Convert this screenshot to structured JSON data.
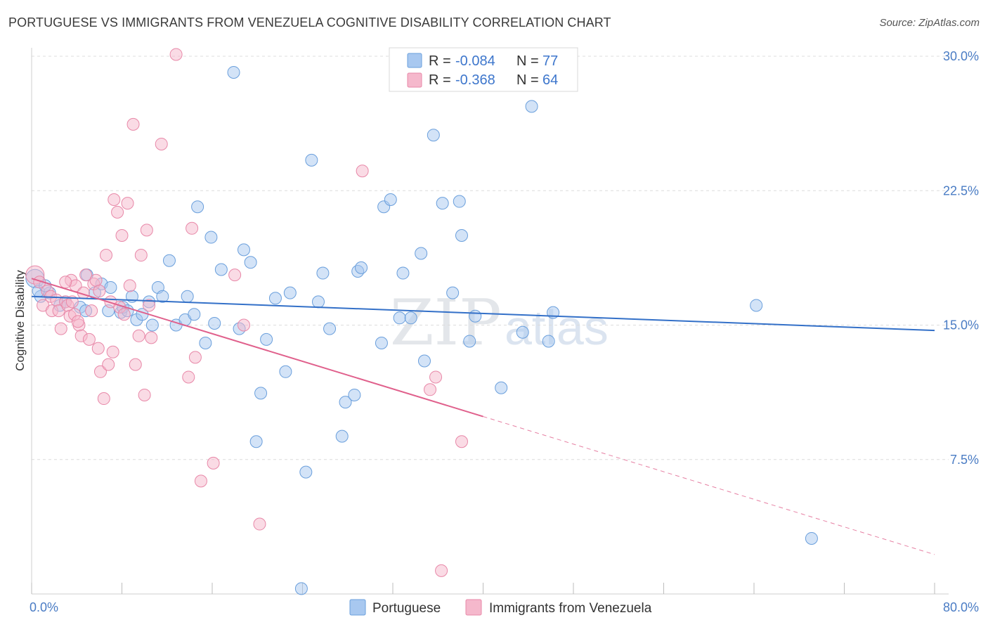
{
  "header": {
    "title": "PORTUGUESE VS IMMIGRANTS FROM VENEZUELA COGNITIVE DISABILITY CORRELATION CHART",
    "source": "Source: ZipAtlas.com"
  },
  "watermark": {
    "zip": "ZIP",
    "atlas": "atlas"
  },
  "legend": {
    "rows": [
      {
        "r_label": "R =",
        "r_value": "-0.084",
        "n_label": "N =",
        "n_value": "77",
        "color": "#a8c8f0"
      },
      {
        "r_label": "R =",
        "r_value": "-0.368",
        "n_label": "N =",
        "n_value": "64",
        "color": "#f5b8cc"
      }
    ]
  },
  "bottom_legend": {
    "items": [
      {
        "label": "Portuguese",
        "color": "#a8c8f0"
      },
      {
        "label": "Immigrants from Venezuela",
        "color": "#f5b8cc"
      }
    ]
  },
  "chart_data": {
    "type": "scatter",
    "title": "PORTUGUESE VS IMMIGRANTS FROM VENEZUELA COGNITIVE DISABILITY CORRELATION CHART",
    "xlabel": "",
    "ylabel": "Cognitive Disability",
    "xlim": [
      0,
      80
    ],
    "ylim": [
      0,
      30
    ],
    "x_tick_labels": [
      "0.0%",
      "80.0%"
    ],
    "y_ticks": [
      7.5,
      15.0,
      22.5,
      30.0
    ],
    "y_tick_labels": [
      "7.5%",
      "15.0%",
      "22.5%",
      "30.0%"
    ],
    "grid": true,
    "legend_position": "top-center",
    "series": [
      {
        "name": "Portuguese",
        "color": "#a8c8f0",
        "stroke": "#6a9fdc",
        "trend": {
          "x": [
            0,
            80
          ],
          "y": [
            16.6,
            14.7
          ],
          "line_color": "#3370c8"
        },
        "points": [
          [
            0.3,
            17.6
          ],
          [
            0.8,
            16.6
          ],
          [
            1.6,
            16.8
          ],
          [
            2.5,
            16.1
          ],
          [
            3.0,
            16.3
          ],
          [
            4.3,
            16.0
          ],
          [
            4.8,
            15.8
          ],
          [
            4.9,
            17.8
          ],
          [
            5.6,
            16.8
          ],
          [
            6.2,
            17.3
          ],
          [
            6.8,
            15.8
          ],
          [
            7.0,
            17.1
          ],
          [
            7.9,
            15.7
          ],
          [
            8.1,
            16.0
          ],
          [
            8.5,
            15.8
          ],
          [
            8.9,
            16.6
          ],
          [
            9.3,
            15.3
          ],
          [
            9.8,
            15.6
          ],
          [
            10.4,
            16.3
          ],
          [
            10.7,
            15.0
          ],
          [
            11.2,
            17.1
          ],
          [
            11.6,
            16.6
          ],
          [
            12.2,
            18.6
          ],
          [
            12.8,
            15.0
          ],
          [
            13.6,
            15.3
          ],
          [
            13.8,
            16.6
          ],
          [
            14.4,
            15.6
          ],
          [
            14.7,
            21.6
          ],
          [
            15.4,
            14.0
          ],
          [
            15.9,
            19.9
          ],
          [
            16.2,
            15.1
          ],
          [
            16.8,
            18.1
          ],
          [
            17.9,
            29.1
          ],
          [
            18.4,
            14.8
          ],
          [
            18.8,
            19.2
          ],
          [
            19.4,
            18.5
          ],
          [
            19.9,
            8.5
          ],
          [
            20.3,
            11.2
          ],
          [
            20.8,
            14.2
          ],
          [
            21.6,
            16.5
          ],
          [
            22.5,
            12.4
          ],
          [
            22.9,
            16.8
          ],
          [
            23.9,
            0.3
          ],
          [
            24.3,
            6.8
          ],
          [
            24.8,
            24.2
          ],
          [
            25.4,
            16.3
          ],
          [
            25.8,
            17.9
          ],
          [
            26.4,
            14.8
          ],
          [
            27.5,
            8.8
          ],
          [
            27.8,
            10.7
          ],
          [
            28.6,
            11.1
          ],
          [
            28.9,
            18.0
          ],
          [
            29.2,
            18.2
          ],
          [
            31.0,
            14.0
          ],
          [
            31.2,
            21.6
          ],
          [
            31.8,
            22.0
          ],
          [
            32.6,
            15.4
          ],
          [
            32.9,
            17.9
          ],
          [
            33.6,
            15.4
          ],
          [
            34.5,
            19.0
          ],
          [
            34.8,
            13.0
          ],
          [
            35.6,
            25.6
          ],
          [
            36.4,
            21.8
          ],
          [
            37.3,
            16.8
          ],
          [
            37.9,
            21.9
          ],
          [
            38.1,
            20.0
          ],
          [
            38.8,
            14.1
          ],
          [
            39.3,
            15.5
          ],
          [
            41.6,
            11.5
          ],
          [
            43.5,
            14.6
          ],
          [
            44.3,
            27.2
          ],
          [
            45.8,
            14.1
          ],
          [
            46.2,
            15.7
          ],
          [
            64.2,
            16.1
          ],
          [
            69.1,
            3.1
          ],
          [
            0.6,
            16.9
          ],
          [
            1.2,
            17.2
          ]
        ]
      },
      {
        "name": "Immigrants from Venezuela",
        "color": "#f5b8cc",
        "stroke": "#e888a8",
        "trend": {
          "x": [
            0,
            40,
            80
          ],
          "y": [
            17.6,
            9.9,
            2.2
          ],
          "line_color": "#e0608c",
          "dashed_after": 40
        },
        "points": [
          [
            0.3,
            17.8
          ],
          [
            0.7,
            17.4
          ],
          [
            1.0,
            16.1
          ],
          [
            1.4,
            16.9
          ],
          [
            1.7,
            16.6
          ],
          [
            1.8,
            15.8
          ],
          [
            2.2,
            16.4
          ],
          [
            2.4,
            15.8
          ],
          [
            2.6,
            14.8
          ],
          [
            3.0,
            16.3
          ],
          [
            3.2,
            16.1
          ],
          [
            3.4,
            15.5
          ],
          [
            3.6,
            16.3
          ],
          [
            3.8,
            15.6
          ],
          [
            3.5,
            17.5
          ],
          [
            3.9,
            17.2
          ],
          [
            4.2,
            15.0
          ],
          [
            4.4,
            14.4
          ],
          [
            4.1,
            15.2
          ],
          [
            4.6,
            16.8
          ],
          [
            4.8,
            17.8
          ],
          [
            5.1,
            14.2
          ],
          [
            5.3,
            15.8
          ],
          [
            5.5,
            17.3
          ],
          [
            5.7,
            17.5
          ],
          [
            5.9,
            13.7
          ],
          [
            6.0,
            16.9
          ],
          [
            6.1,
            12.4
          ],
          [
            6.4,
            10.9
          ],
          [
            6.6,
            18.9
          ],
          [
            6.8,
            12.8
          ],
          [
            7.0,
            16.3
          ],
          [
            7.2,
            13.5
          ],
          [
            7.3,
            22.0
          ],
          [
            7.6,
            21.3
          ],
          [
            7.8,
            16.0
          ],
          [
            8.0,
            20.0
          ],
          [
            8.2,
            15.6
          ],
          [
            8.5,
            21.8
          ],
          [
            8.7,
            17.2
          ],
          [
            9.0,
            26.2
          ],
          [
            9.2,
            12.8
          ],
          [
            9.5,
            14.4
          ],
          [
            9.7,
            18.9
          ],
          [
            10.0,
            11.1
          ],
          [
            10.2,
            20.3
          ],
          [
            10.4,
            16.1
          ],
          [
            10.6,
            14.3
          ],
          [
            11.5,
            25.1
          ],
          [
            12.8,
            30.1
          ],
          [
            13.9,
            12.1
          ],
          [
            14.2,
            20.4
          ],
          [
            14.5,
            13.2
          ],
          [
            15.0,
            6.3
          ],
          [
            16.1,
            7.3
          ],
          [
            18.0,
            17.8
          ],
          [
            18.8,
            15.0
          ],
          [
            20.2,
            3.9
          ],
          [
            29.3,
            23.6
          ],
          [
            35.3,
            11.4
          ],
          [
            35.8,
            12.1
          ],
          [
            36.3,
            1.3
          ],
          [
            38.1,
            8.5
          ],
          [
            3.0,
            17.4
          ]
        ]
      }
    ]
  }
}
